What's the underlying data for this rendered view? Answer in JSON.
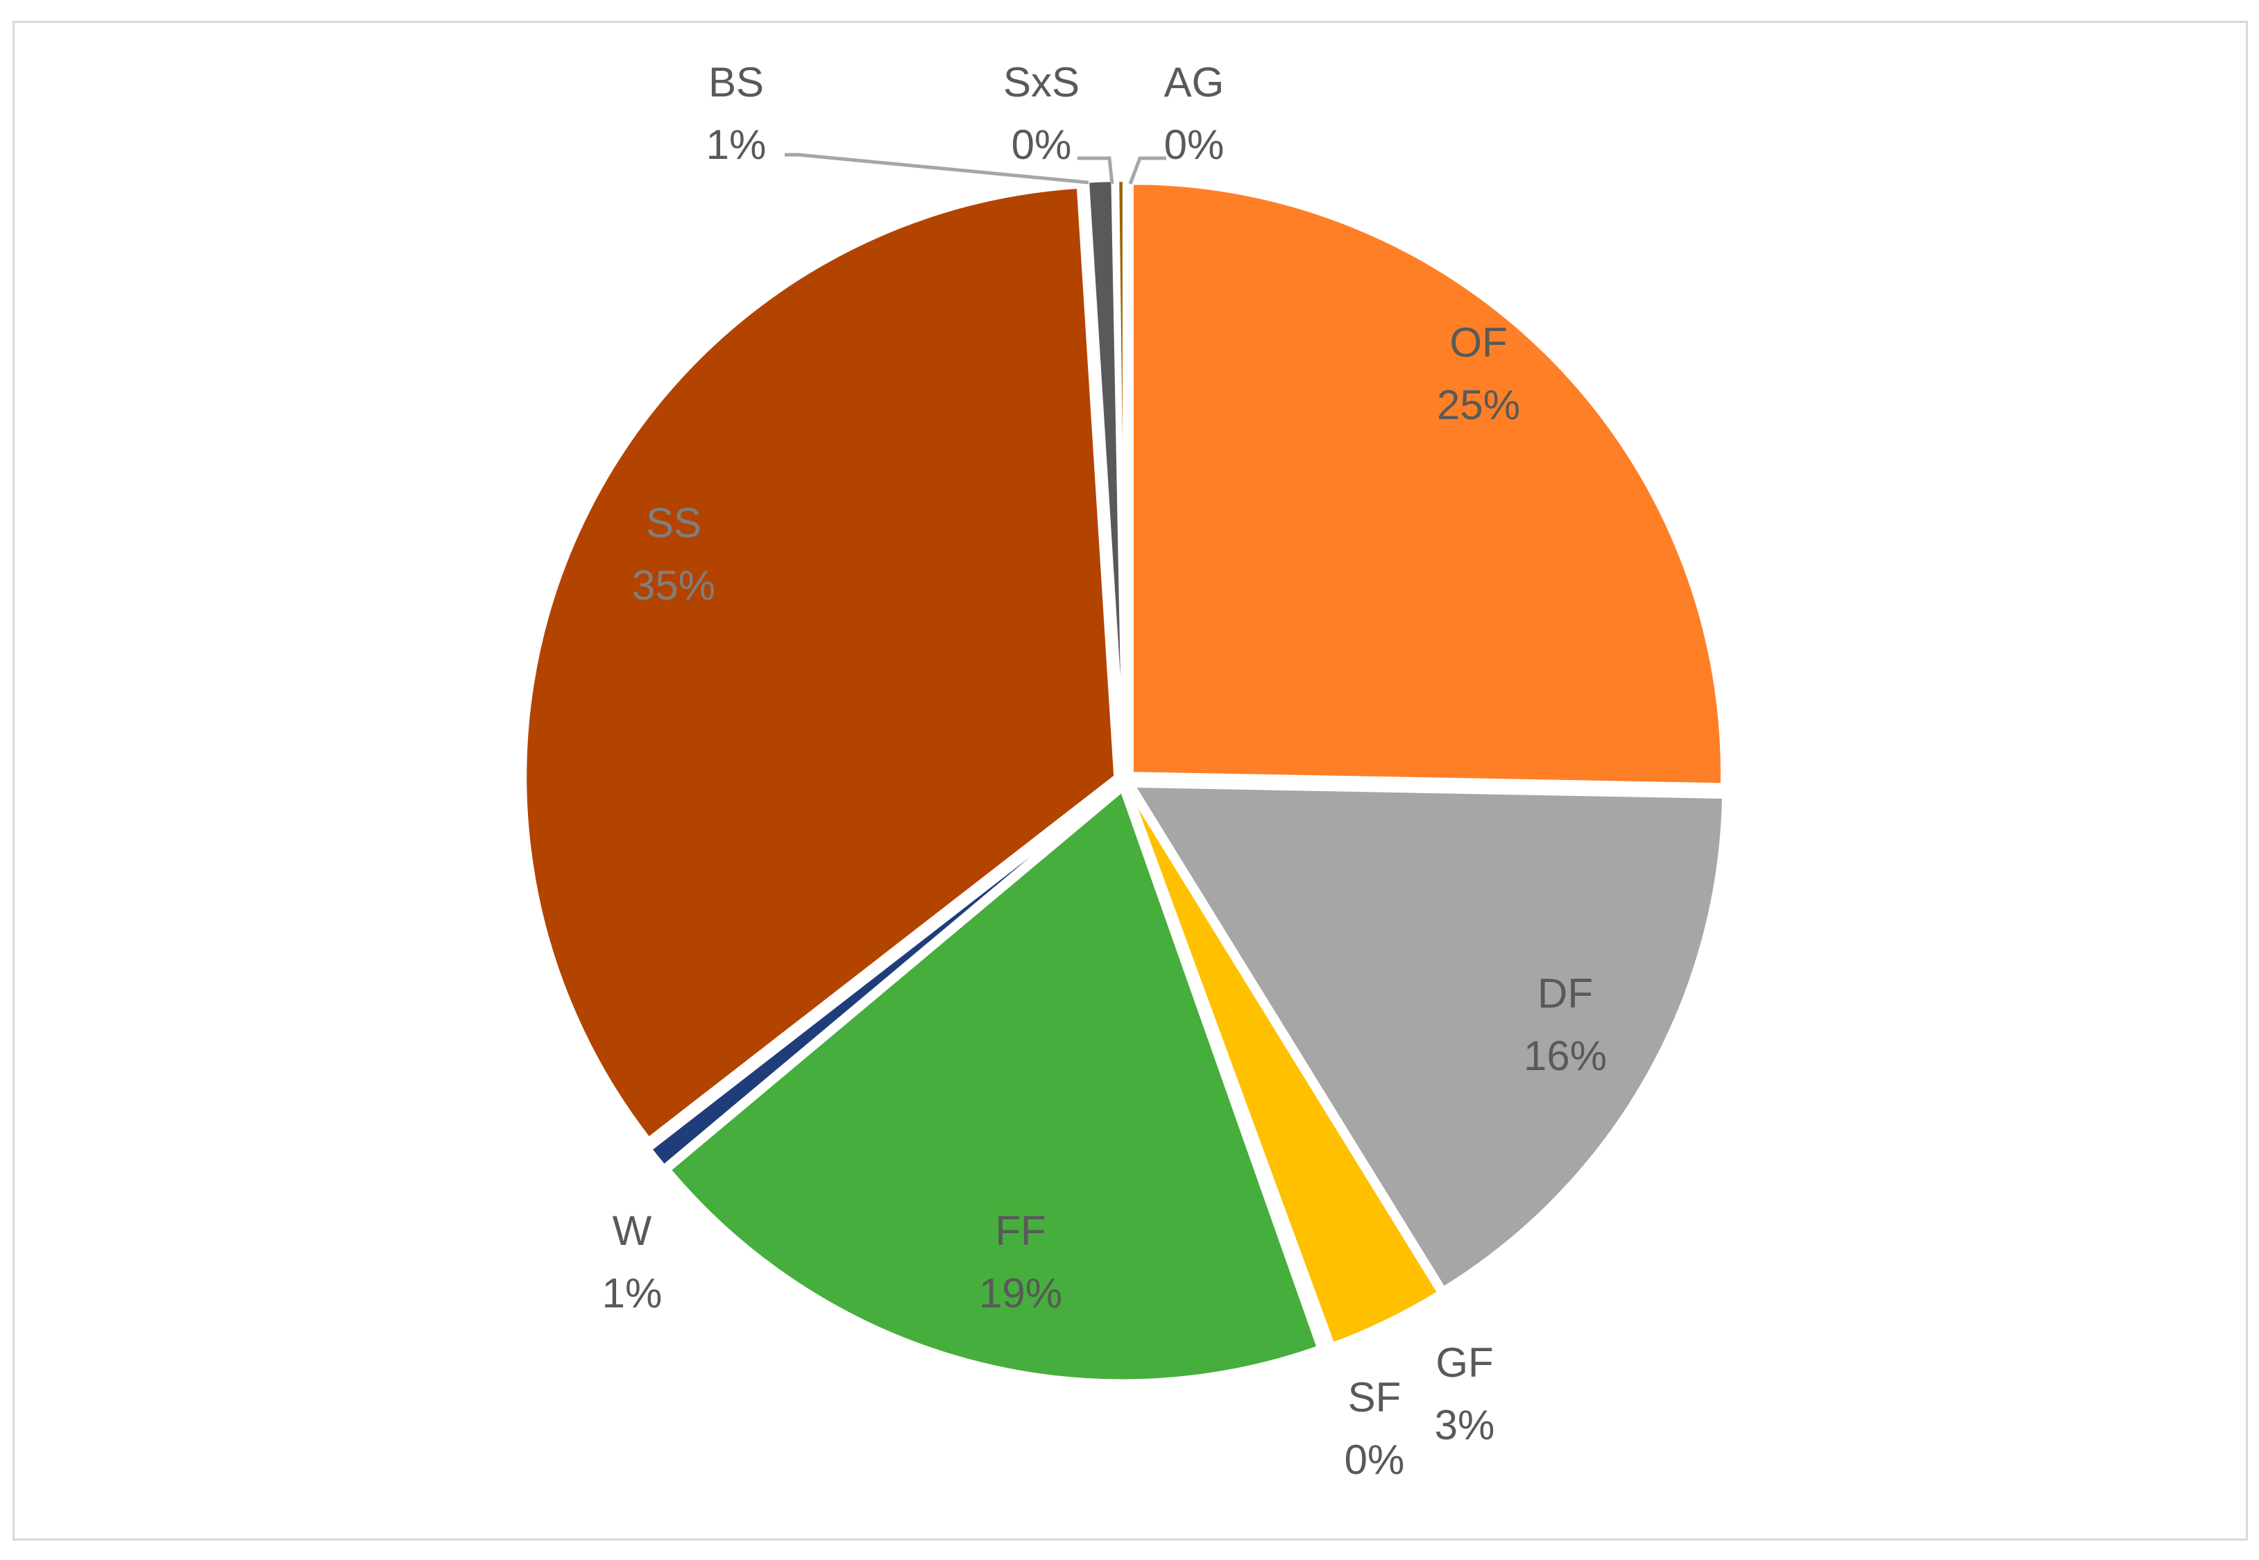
{
  "chart_data": {
    "type": "pie",
    "title": "",
    "start_angle_deg": 0,
    "direction": "clockwise",
    "legend": "none",
    "data_labels": "category-and-percent",
    "slices": [
      {
        "label": "OF",
        "value": 25.3,
        "percent_label": "25%",
        "color": "#ff7f27",
        "label_color": "#595959"
      },
      {
        "label": "DF",
        "value": 15.9,
        "percent_label": "16%",
        "color": "#a6a6a6",
        "label_color": "#595959"
      },
      {
        "label": "GF",
        "value": 3.2,
        "percent_label": "3%",
        "color": "#ffc000",
        "label_color": "#595959"
      },
      {
        "label": "SF",
        "value": 0.2,
        "percent_label": "0%",
        "color": "#ffffff",
        "label_color": "#595959"
      },
      {
        "label": "FF",
        "value": 19.3,
        "percent_label": "19%",
        "color": "#46ae3c",
        "label_color": "#595959"
      },
      {
        "label": "W",
        "value": 0.6,
        "percent_label": "1%",
        "color": "#1f3d7a",
        "label_color": "#595959"
      },
      {
        "label": "SS",
        "value": 34.5,
        "percent_label": "35%",
        "color": "#b34400",
        "label_color": "#7f7f7f"
      },
      {
        "label": "BS",
        "value": 0.7,
        "percent_label": "1%",
        "color": "#595959",
        "label_color": "#595959"
      },
      {
        "label": "SxS",
        "value": 0.1,
        "percent_label": "0%",
        "color": "#cfcfcf",
        "label_color": "#595959"
      },
      {
        "label": "AG",
        "value": 0.2,
        "percent_label": "0%",
        "color": "#9c6500",
        "label_color": "#595959"
      }
    ]
  }
}
